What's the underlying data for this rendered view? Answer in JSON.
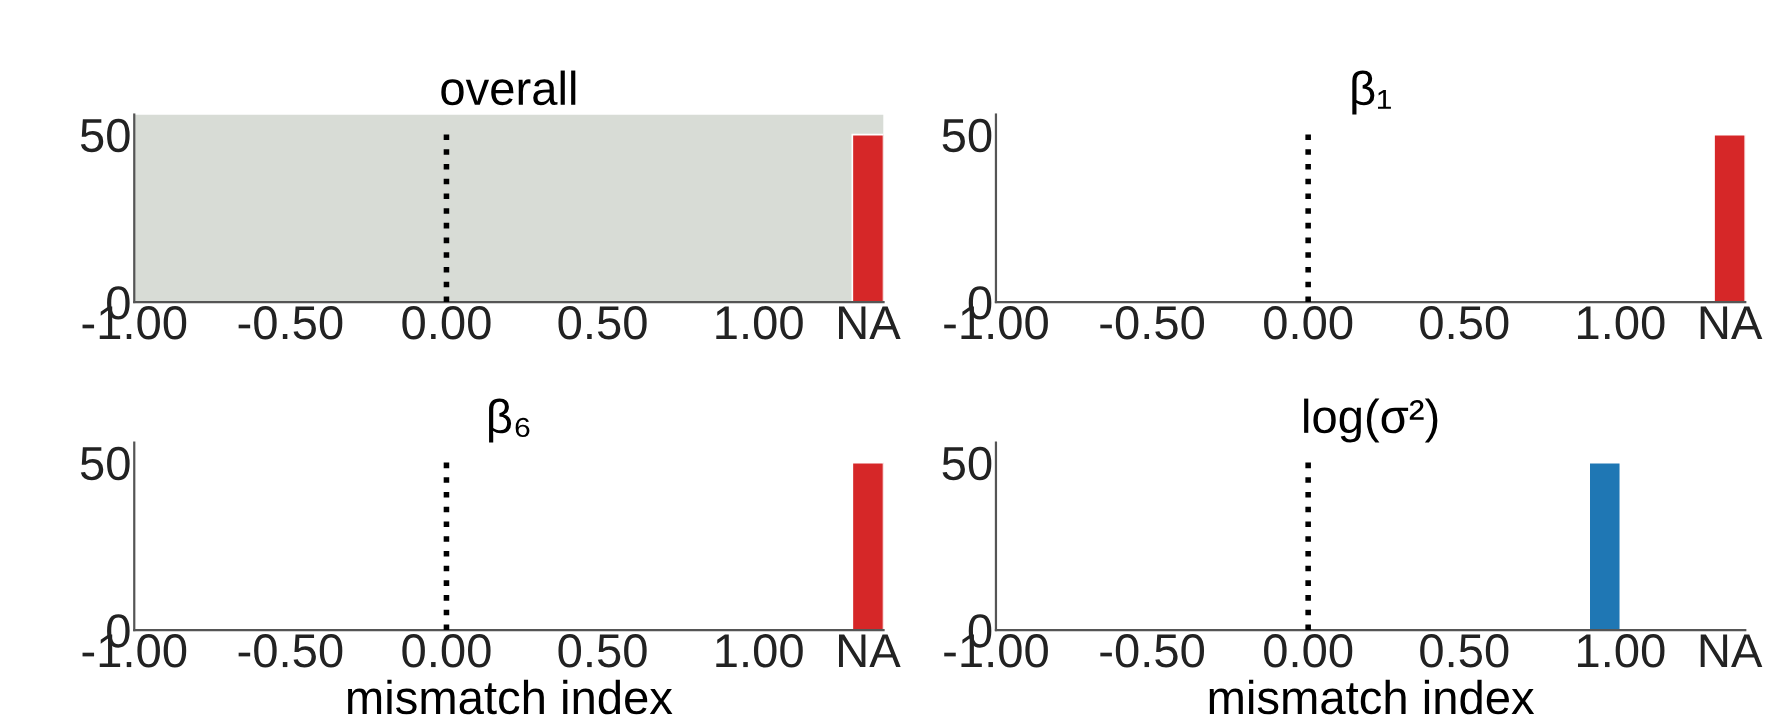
{
  "chart_data": [
    {
      "type": "histogram",
      "title": "overall",
      "bins": [
        1.3,
        1.4
      ],
      "values": [
        50
      ],
      "color": "#d62728",
      "xlim": [
        -1.0,
        1.4
      ],
      "ylim": [
        0,
        56
      ],
      "xticks": [
        {
          "value": -1.0,
          "label": "-1.00"
        },
        {
          "value": -0.5,
          "label": "-0.50"
        },
        {
          "value": 0.0,
          "label": "0.00"
        },
        {
          "value": 0.5,
          "label": "0.50"
        },
        {
          "value": 1.0,
          "label": "1.00"
        },
        {
          "value": 1.35,
          "label": "NA"
        }
      ],
      "yticks": [
        0,
        50
      ],
      "ref_lines": [
        {
          "axis": "x",
          "value": 0,
          "line_style": "dotted",
          "color": "#000000"
        }
      ],
      "bands": [
        {
          "axis": "x",
          "from": -1.0,
          "to": 1.4,
          "color": "#d8dcd6"
        }
      ],
      "grid": false,
      "legend": false
    },
    {
      "type": "histogram",
      "title": "β₁",
      "bins": [
        1.3,
        1.4
      ],
      "values": [
        50
      ],
      "color": "#d62728",
      "xlim": [
        -1.0,
        1.4
      ],
      "ylim": [
        0,
        56
      ],
      "xticks": [
        {
          "value": -1.0,
          "label": "-1.00"
        },
        {
          "value": -0.5,
          "label": "-0.50"
        },
        {
          "value": 0.0,
          "label": "0.00"
        },
        {
          "value": 0.5,
          "label": "0.50"
        },
        {
          "value": 1.0,
          "label": "1.00"
        },
        {
          "value": 1.35,
          "label": "NA"
        }
      ],
      "yticks": [
        0,
        50
      ],
      "ref_lines": [
        {
          "axis": "x",
          "value": 0,
          "line_style": "dotted",
          "color": "#000000"
        }
      ],
      "grid": false,
      "legend": false
    },
    {
      "type": "histogram",
      "title": "β₆",
      "xlabel": "mismatch index",
      "bins": [
        1.3,
        1.4
      ],
      "values": [
        50
      ],
      "color": "#d62728",
      "xlim": [
        -1.0,
        1.4
      ],
      "ylim": [
        0,
        56
      ],
      "xticks": [
        {
          "value": -1.0,
          "label": "-1.00"
        },
        {
          "value": -0.5,
          "label": "-0.50"
        },
        {
          "value": 0.0,
          "label": "0.00"
        },
        {
          "value": 0.5,
          "label": "0.50"
        },
        {
          "value": 1.0,
          "label": "1.00"
        },
        {
          "value": 1.35,
          "label": "NA"
        }
      ],
      "yticks": [
        0,
        50
      ],
      "ref_lines": [
        {
          "axis": "x",
          "value": 0,
          "line_style": "dotted",
          "color": "#000000"
        }
      ],
      "grid": false,
      "legend": false
    },
    {
      "type": "histogram",
      "title": "log(σ²)",
      "xlabel": "mismatch index",
      "bins": [
        0.9,
        1.0
      ],
      "values": [
        50
      ],
      "color": "#1f77b4",
      "xlim": [
        -1.0,
        1.4
      ],
      "ylim": [
        0,
        56
      ],
      "xticks": [
        {
          "value": -1.0,
          "label": "-1.00"
        },
        {
          "value": -0.5,
          "label": "-0.50"
        },
        {
          "value": 0.0,
          "label": "0.00"
        },
        {
          "value": 0.5,
          "label": "0.50"
        },
        {
          "value": 1.0,
          "label": "1.00"
        },
        {
          "value": 1.35,
          "label": "NA"
        }
      ],
      "yticks": [
        0,
        50
      ],
      "ref_lines": [
        {
          "axis": "x",
          "value": 0,
          "line_style": "dotted",
          "color": "#000000"
        }
      ],
      "grid": false,
      "legend": false
    }
  ]
}
